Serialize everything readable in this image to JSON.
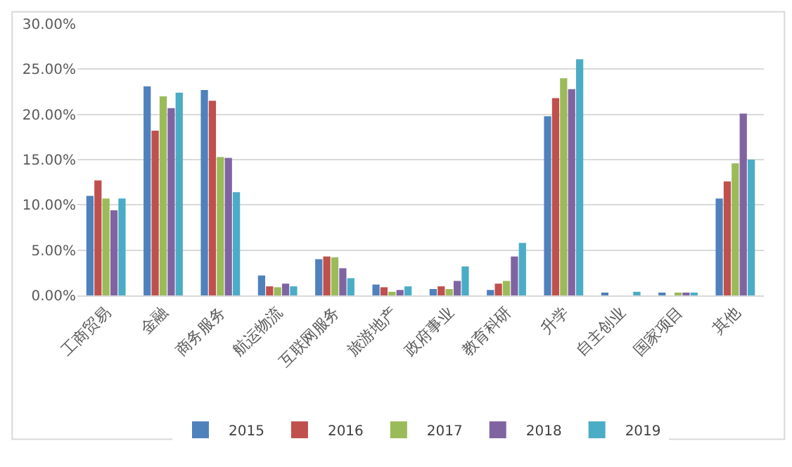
{
  "chart_data": {
    "type": "bar",
    "categories": [
      "工商贸易",
      "金融",
      "商务服务",
      "航运物流",
      "互联网服务",
      "旅游地产",
      "政府事业",
      "教育科研",
      "升学",
      "自主创业",
      "国家项目",
      "其他"
    ],
    "series": [
      {
        "name": "2015",
        "color": "#4f81bd",
        "values": [
          11.0,
          23.1,
          22.7,
          2.2,
          4.0,
          1.2,
          0.7,
          0.6,
          19.8,
          0.2,
          0.2,
          10.7
        ]
      },
      {
        "name": "2016",
        "color": "#c0504d",
        "values": [
          12.7,
          18.2,
          21.5,
          1.0,
          4.3,
          0.9,
          1.0,
          1.3,
          21.8,
          0,
          0,
          12.6
        ]
      },
      {
        "name": "2017",
        "color": "#9bbb59",
        "values": [
          10.7,
          22.0,
          15.3,
          0.9,
          4.2,
          0.4,
          0.7,
          1.6,
          24.0,
          0,
          0.3,
          14.6
        ]
      },
      {
        "name": "2018",
        "color": "#8064a2",
        "values": [
          9.4,
          20.7,
          15.2,
          1.3,
          3.0,
          0.6,
          1.6,
          4.3,
          22.8,
          0,
          0.2,
          20.1
        ]
      },
      {
        "name": "2019",
        "color": "#4bacc6",
        "values": [
          10.7,
          22.4,
          11.4,
          1.0,
          1.9,
          1.0,
          3.2,
          5.8,
          26.1,
          0.4,
          0.2,
          15.0
        ]
      }
    ],
    "ylim": [
      0,
      30
    ],
    "yticks": [
      {
        "value": 0,
        "label": "0.00%"
      },
      {
        "value": 5,
        "label": "5.00%"
      },
      {
        "value": 10,
        "label": "10.00%"
      },
      {
        "value": 15,
        "label": "15.00%"
      },
      {
        "value": 20,
        "label": "20.00%"
      },
      {
        "value": 25,
        "label": "25.00%"
      },
      {
        "value": 30,
        "label": "30.00%"
      }
    ],
    "grid": "y",
    "legend": "bottom"
  }
}
